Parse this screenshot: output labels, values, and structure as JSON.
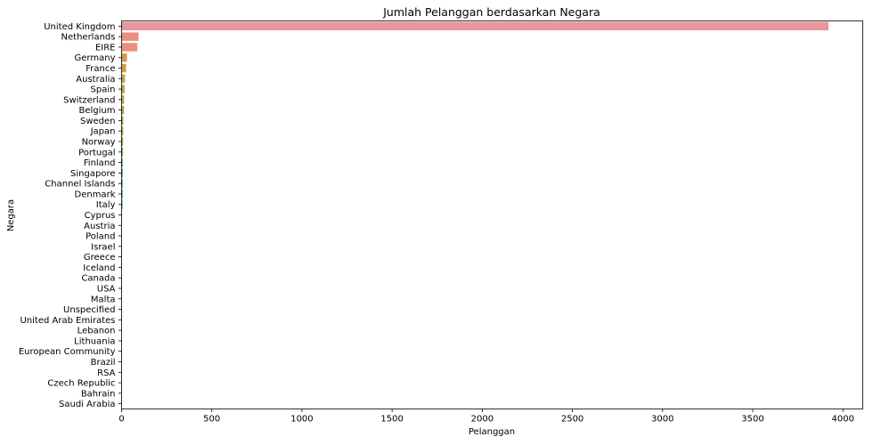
{
  "chart_data": {
    "type": "bar",
    "orientation": "horizontal",
    "title": "Jumlah Pelanggan berdasarkan Negara",
    "xlabel": "Pelanggan",
    "ylabel": "Negara",
    "xlim": [
      0,
      4110
    ],
    "xticks": [
      0,
      500,
      1000,
      1500,
      2000,
      2500,
      3000,
      3500,
      4000
    ],
    "grid": false,
    "categories": [
      "United Kingdom",
      "Netherlands",
      "EIRE",
      "Germany",
      "France",
      "Australia",
      "Spain",
      "Switzerland",
      "Belgium",
      "Sweden",
      "Japan",
      "Norway",
      "Portugal",
      "Finland",
      "Singapore",
      "Channel Islands",
      "Denmark",
      "Italy",
      "Cyprus",
      "Austria",
      "Poland",
      "Israel",
      "Greece",
      "Iceland",
      "Canada",
      "USA",
      "Malta",
      "Unspecified",
      "United Arab Emirates",
      "Lebanon",
      "Lithuania",
      "European Community",
      "Brazil",
      "RSA",
      "Czech Republic",
      "Bahrain",
      "Saudi Arabia"
    ],
    "values": [
      3920,
      94,
      87,
      30,
      25,
      19,
      17,
      14,
      13,
      10,
      9,
      8,
      8,
      7,
      7,
      7,
      7,
      6,
      2,
      2,
      2,
      2,
      2,
      2,
      2,
      2,
      2,
      2,
      2,
      1,
      1,
      1,
      1,
      1,
      1,
      1,
      1
    ],
    "colors": [
      "#e8959b",
      "#e9917d",
      "#e9917d",
      "#d89a55",
      "#ce9d4f",
      "#c7a04e",
      "#c0a34c",
      "#b8a64b",
      "#aeaa4a",
      "#a2ad48",
      "#94b047",
      "#83b449",
      "#6db74d",
      "#55b95a",
      "#4dba77",
      "#4dbb8a",
      "#4fbb98",
      "#50bba4",
      "#52baaf",
      "#53b9ba",
      "#55b7c3",
      "#57b5cd",
      "#5bb2d6",
      "#66aee2",
      "#74a9ea",
      "#86a3ee",
      "#989ef0",
      "#a999f0",
      "#b793ef",
      "#c48def",
      "#d087ec",
      "#db82e5",
      "#e37fdc",
      "#e87fd1",
      "#ea81c4",
      "#eb84b6",
      "#eb87a8"
    ]
  }
}
